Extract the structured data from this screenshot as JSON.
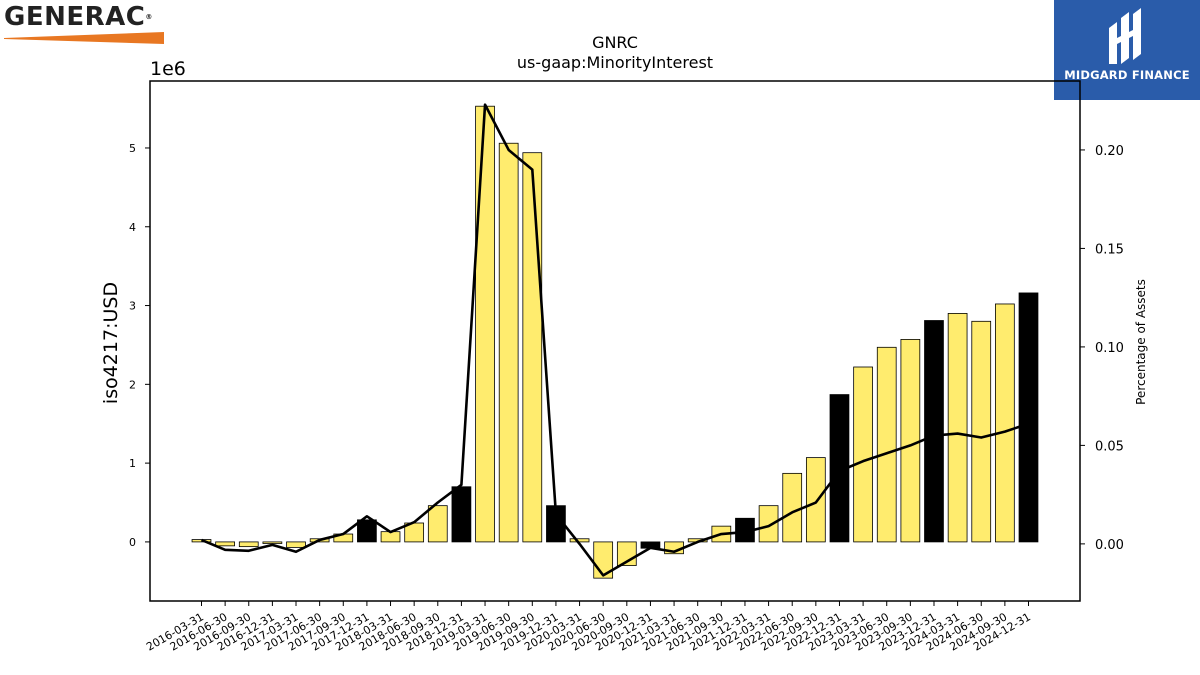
{
  "logos": {
    "left": {
      "text": "GENERAC",
      "mark": "®",
      "colors": {
        "text": "#222222",
        "accent": "#e87722"
      }
    },
    "right": {
      "text": "MIDGARD FINANCE",
      "colors": {
        "background": "#2a5caa",
        "text": "#ffffff"
      }
    }
  },
  "chart_data": {
    "type": "bar",
    "title": "GNRC",
    "subtitle": "us-gaap:MinorityInterest",
    "ylabel": "iso4217:USD",
    "y_offset_label": "1e6",
    "y2label": "Percentage of Assets",
    "ylim": [
      -0.75,
      5.85
    ],
    "y2lim": [
      -0.029,
      0.235
    ],
    "y_ticks": [
      "0",
      "1",
      "2",
      "3",
      "4",
      "5"
    ],
    "y2_ticks": [
      "0.00",
      "0.05",
      "0.10",
      "0.15",
      "0.20"
    ],
    "grid": false,
    "colors": {
      "bar": "#ffec6e",
      "bar_highlight": "#000000",
      "line": "#000000",
      "edge": "#000000"
    },
    "categories": [
      "2016-03-31",
      "2016-06-30",
      "2016-09-30",
      "2016-12-31",
      "2017-03-31",
      "2017-06-30",
      "2017-09-30",
      "2017-12-31",
      "2018-03-31",
      "2018-06-30",
      "2018-09-30",
      "2018-12-31",
      "2019-03-31",
      "2019-06-30",
      "2019-09-30",
      "2019-12-31",
      "2020-03-31",
      "2020-06-30",
      "2020-09-30",
      "2020-12-31",
      "2021-03-31",
      "2021-06-30",
      "2021-09-30",
      "2021-12-31",
      "2022-03-31",
      "2022-06-30",
      "2022-09-30",
      "2022-12-31",
      "2023-03-31",
      "2023-06-30",
      "2023-09-30",
      "2023-12-31",
      "2024-03-31",
      "2024-06-30",
      "2024-09-30",
      "2024-12-31"
    ],
    "series": [
      {
        "kind": "bar",
        "values": [
          0.03,
          -0.05,
          -0.06,
          -0.02,
          -0.07,
          0.04,
          0.1,
          0.28,
          0.13,
          0.24,
          0.46,
          0.7,
          5.53,
          5.06,
          4.94,
          0.46,
          0.04,
          -0.46,
          -0.3,
          -0.08,
          -0.15,
          0.04,
          0.2,
          0.3,
          0.46,
          0.87,
          1.07,
          1.87,
          2.22,
          2.47,
          2.57,
          2.81,
          2.9,
          2.8,
          3.02,
          3.16
        ],
        "highlight": [
          false,
          false,
          false,
          false,
          false,
          false,
          false,
          true,
          false,
          false,
          false,
          true,
          false,
          false,
          false,
          true,
          false,
          false,
          false,
          true,
          false,
          false,
          false,
          true,
          false,
          false,
          false,
          true,
          false,
          false,
          false,
          true,
          false,
          false,
          false,
          true
        ]
      },
      {
        "kind": "line",
        "axis": "right",
        "values": [
          0.002,
          -0.003,
          -0.0035,
          -0.0005,
          -0.004,
          0.002,
          0.005,
          0.014,
          0.006,
          0.011,
          0.021,
          0.03,
          0.223,
          0.2,
          0.19,
          0.015,
          0.0,
          -0.016,
          -0.009,
          -0.002,
          -0.004,
          0.001,
          0.005,
          0.006,
          0.009,
          0.016,
          0.021,
          0.037,
          0.042,
          0.046,
          0.05,
          0.055,
          0.056,
          0.054,
          0.057,
          0.061
        ]
      }
    ]
  }
}
